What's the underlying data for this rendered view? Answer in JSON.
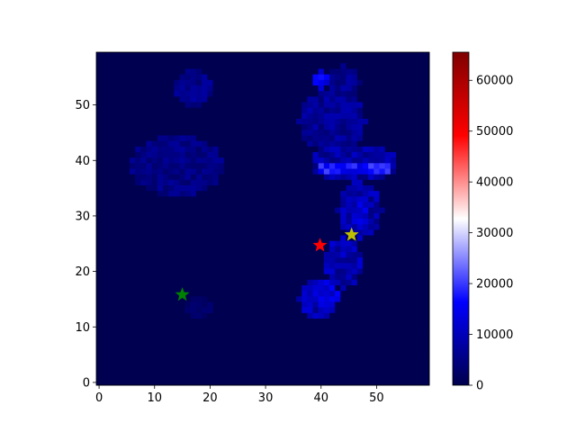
{
  "chart_data": {
    "type": "heatmap",
    "title": "",
    "xlabel": "",
    "ylabel": "",
    "shape": [
      60,
      60
    ],
    "origin": "top-left",
    "xlim": [
      -0.5,
      59.5
    ],
    "ylim": [
      59.5,
      -0.5
    ],
    "x_ticks": [
      0,
      10,
      20,
      30,
      40,
      50
    ],
    "y_ticks": [
      0,
      10,
      20,
      30,
      40,
      50
    ],
    "colormap": "seismic",
    "colormap_stops": [
      "#00004c",
      "#0000ff",
      "#ffffff",
      "#ff0000",
      "#7f0000"
    ],
    "colorbar_range": [
      0,
      65535
    ],
    "colorbar_ticks": [
      0,
      10000,
      20000,
      30000,
      40000,
      50000,
      60000
    ],
    "background_value": 500,
    "blobs": [
      {
        "region": "left-heel",
        "cx": 17,
        "cy": 6,
        "rx": 3.5,
        "ry": 3.5,
        "value": 5500
      },
      {
        "region": "left-forefoot",
        "cx": 14,
        "cy": 20,
        "rx": 8.5,
        "ry": 5.5,
        "value": 5000
      },
      {
        "region": "left-toe",
        "cx": 18,
        "cy": 45.5,
        "rx": 3,
        "ry": 2,
        "value": 2500
      },
      {
        "region": "right-heel",
        "cx": 42,
        "cy": 12,
        "rx": 6,
        "ry": 5.5,
        "value": 6500
      },
      {
        "region": "right-heel-upper",
        "cx": 44,
        "cy": 5,
        "rx": 3,
        "ry": 3,
        "value": 6000
      },
      {
        "region": "right-midfoot",
        "cx": 46,
        "cy": 19.5,
        "rx": 8,
        "ry": 3.5,
        "value": 8000
      },
      {
        "region": "right-arch",
        "cx": 47,
        "cy": 28,
        "rx": 4,
        "ry": 5,
        "value": 8500
      },
      {
        "region": "right-forefoot",
        "cx": 44,
        "cy": 37.5,
        "rx": 3.5,
        "ry": 4.5,
        "value": 9000
      },
      {
        "region": "right-toe",
        "cx": 39.5,
        "cy": 44,
        "rx": 3.5,
        "ry": 4,
        "value": 9500
      }
    ],
    "hotspots": [
      {
        "cx": 46,
        "cy": 20.5,
        "rx": 6.5,
        "ry": 1.3,
        "value": 17000
      },
      {
        "cx": 40,
        "cy": 4.5,
        "rx": 1.5,
        "ry": 1.5,
        "value": 14000
      },
      {
        "cx": 41,
        "cy": 43,
        "rx": 2,
        "ry": 2,
        "value": 13000
      },
      {
        "cx": 47,
        "cy": 29,
        "rx": 1.5,
        "ry": 2,
        "value": 12000
      }
    ],
    "markers": [
      {
        "name": "green-star",
        "x": 15,
        "y": 15.8,
        "color": "#008000"
      },
      {
        "name": "red-star",
        "x": 39.8,
        "y": 24.7,
        "color": "#ff0000"
      },
      {
        "name": "yellow-star",
        "x": 45.5,
        "y": 26.6,
        "color": "#bfbf00"
      }
    ]
  }
}
